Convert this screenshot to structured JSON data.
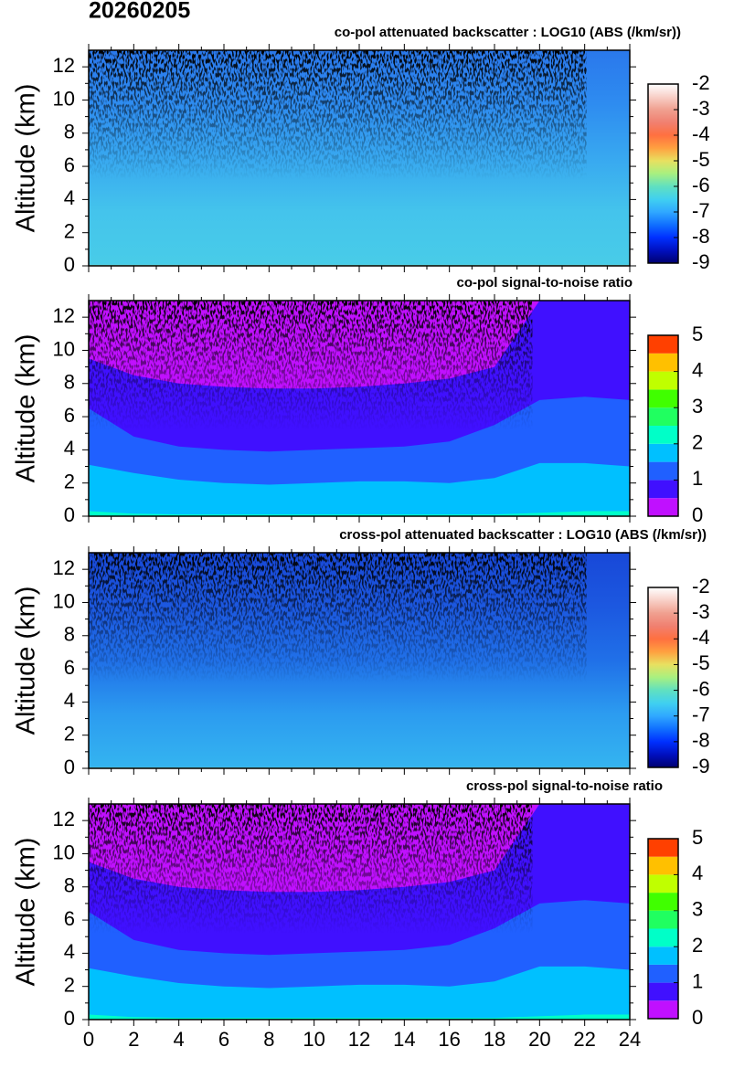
{
  "title": "20260205",
  "chart_data": [
    {
      "type": "heatmap",
      "title": "co-pol attenuated backscatter : LOG10 (ABS (/km/sr))",
      "y_label": "Altitude (km)",
      "ylim": [
        0,
        13
      ],
      "yticks": [
        0,
        2,
        4,
        6,
        8,
        10,
        12
      ],
      "colorbar": {
        "kind": "continuous",
        "lim": [
          -9,
          -2
        ],
        "ticks": [
          -9,
          -8,
          -7,
          -6,
          -5,
          -4,
          -3,
          -2
        ],
        "stops": [
          {
            "value": -9,
            "color": "#000070"
          },
          {
            "value": -8.5,
            "color": "#0010c0"
          },
          {
            "value": -8,
            "color": "#0030ff"
          },
          {
            "value": -7.5,
            "color": "#1070ff"
          },
          {
            "value": -7,
            "color": "#30a8ff"
          },
          {
            "value": -6.5,
            "color": "#40d0f0"
          },
          {
            "value": -6,
            "color": "#60e0c0"
          },
          {
            "value": -5.5,
            "color": "#a8f080"
          },
          {
            "value": -5,
            "color": "#e8e060"
          },
          {
            "value": -4.5,
            "color": "#ffa040"
          },
          {
            "value": -4,
            "color": "#ff7040"
          },
          {
            "value": -3.5,
            "color": "#f08070"
          },
          {
            "value": -3,
            "color": "#f0a090"
          },
          {
            "value": -2.5,
            "color": "#f8d0c8"
          },
          {
            "value": -2,
            "color": "#ffffff"
          }
        ]
      }
    },
    {
      "type": "heatmap",
      "title": "co-pol signal-to-noise ratio",
      "y_label": "Altitude (km)",
      "ylim": [
        0,
        13
      ],
      "yticks": [
        0,
        2,
        4,
        6,
        8,
        10,
        12
      ],
      "colorbar": {
        "kind": "discrete",
        "lim": [
          0,
          5
        ],
        "ticks": [
          0,
          1,
          2,
          3,
          4,
          5
        ],
        "levels": [
          0,
          0.5,
          1,
          1.5,
          2,
          2.5,
          3,
          3.5,
          4,
          4.5,
          5
        ],
        "colors": [
          "#c010ff",
          "#4010ff",
          "#2060ff",
          "#00c0ff",
          "#00ffc8",
          "#20ff60",
          "#40ff00",
          "#c0ff00",
          "#ffc000",
          "#ff4000"
        ]
      }
    },
    {
      "type": "heatmap",
      "title": "cross-pol attenuated backscatter : LOG10 (ABS (/km/sr))",
      "y_label": "Altitude (km)",
      "ylim": [
        0,
        13
      ],
      "yticks": [
        0,
        2,
        4,
        6,
        8,
        10,
        12
      ],
      "colorbar": {
        "kind": "continuous",
        "lim": [
          -9,
          -2
        ],
        "ticks": [
          -9,
          -8,
          -7,
          -6,
          -5,
          -4,
          -3,
          -2
        ],
        "stops": [
          {
            "value": -9,
            "color": "#000070"
          },
          {
            "value": -8.5,
            "color": "#0010c0"
          },
          {
            "value": -8,
            "color": "#0030ff"
          },
          {
            "value": -7.5,
            "color": "#1070ff"
          },
          {
            "value": -7,
            "color": "#30a8ff"
          },
          {
            "value": -6.5,
            "color": "#40d0f0"
          },
          {
            "value": -6,
            "color": "#60e0c0"
          },
          {
            "value": -5.5,
            "color": "#a8f080"
          },
          {
            "value": -5,
            "color": "#e8e060"
          },
          {
            "value": -4.5,
            "color": "#ffa040"
          },
          {
            "value": -4,
            "color": "#ff7040"
          },
          {
            "value": -3.5,
            "color": "#f08070"
          },
          {
            "value": -3,
            "color": "#f0a090"
          },
          {
            "value": -2.5,
            "color": "#f8d0c8"
          },
          {
            "value": -2,
            "color": "#ffffff"
          }
        ]
      }
    },
    {
      "type": "heatmap",
      "title": "cross-pol signal-to-noise ratio",
      "y_label": "Altitude (km)",
      "xlim": [
        0,
        24
      ],
      "xticks": [
        0,
        2,
        4,
        6,
        8,
        10,
        12,
        14,
        16,
        18,
        20,
        22,
        24
      ],
      "ylim": [
        0,
        13
      ],
      "yticks": [
        0,
        2,
        4,
        6,
        8,
        10,
        12
      ],
      "colorbar": {
        "kind": "discrete",
        "lim": [
          0,
          5
        ],
        "ticks": [
          0,
          1,
          2,
          3,
          4,
          5
        ],
        "levels": [
          0,
          0.5,
          1,
          1.5,
          2,
          2.5,
          3,
          3.5,
          4,
          4.5,
          5
        ],
        "colors": [
          "#c010ff",
          "#4010ff",
          "#2060ff",
          "#00c0ff",
          "#00ffc8",
          "#20ff60",
          "#40ff00",
          "#c0ff00",
          "#ffc000",
          "#ff4000"
        ]
      }
    }
  ]
}
